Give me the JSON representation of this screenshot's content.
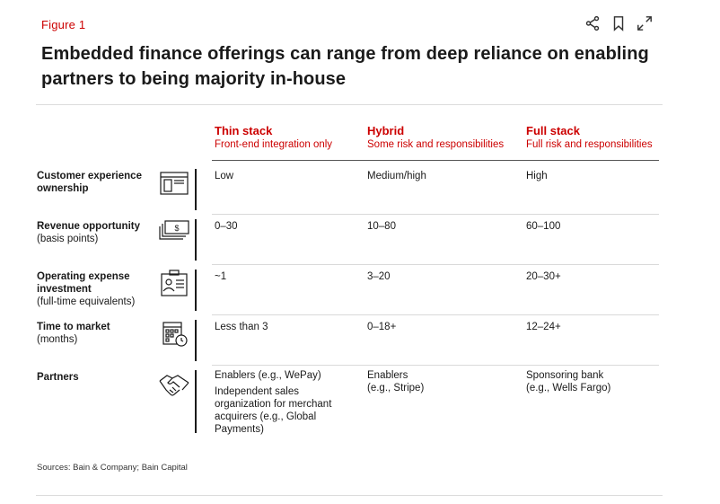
{
  "figure_label": "Figure 1",
  "title": "Embedded finance offerings can range from deep reliance on enabling partners to being majority in-house",
  "toolbar": {
    "share_icon": "share-icon",
    "bookmark_icon": "bookmark-icon",
    "expand_icon": "expand-icon"
  },
  "columns": [
    {
      "name": "Thin stack",
      "subtitle": "Front-end integration only"
    },
    {
      "name": "Hybrid",
      "subtitle": "Some risk and responsibilities"
    },
    {
      "name": "Full stack",
      "subtitle": "Full risk and responsibilities"
    }
  ],
  "rows": [
    {
      "label_bold": "Customer experience ownership",
      "label_normal": "",
      "icon": "browser-window-icon",
      "cells": [
        "Low",
        "Medium/high",
        "High"
      ]
    },
    {
      "label_bold": "Revenue opportunity",
      "label_normal": "(basis points)",
      "icon": "dollar-bills-icon",
      "cells": [
        "0–30",
        "10–80",
        "60–100"
      ]
    },
    {
      "label_bold": "Operating expense investment",
      "label_normal": "(full-time equivalents)",
      "icon": "id-badge-icon",
      "cells": [
        "~1",
        "3–20",
        "20–30+"
      ]
    },
    {
      "label_bold": "Time to market",
      "label_normal": "(months)",
      "icon": "calendar-clock-icon",
      "cells": [
        "Less than 3",
        "0–18+",
        "12–24+"
      ]
    },
    {
      "label_bold": "Partners",
      "label_normal": "",
      "icon": "handshake-icon",
      "cells": [
        "Enablers (e.g., WePay)",
        "Enablers\n(e.g., Stripe)",
        "Sponsoring bank\n(e.g., Wells Fargo)"
      ],
      "cell_extra": "Independent sales organization for merchant acquirers (e.g., Global Payments)"
    }
  ],
  "sources": "Sources: Bain & Company; Bain Capital",
  "colors": {
    "accent": "#cc0000",
    "text": "#1a1a1a"
  }
}
